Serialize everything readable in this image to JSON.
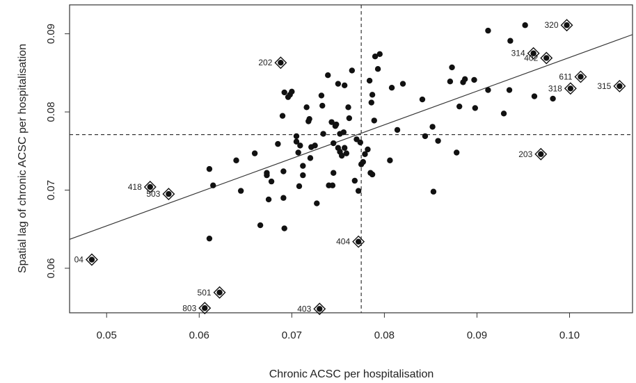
{
  "chart_data": {
    "type": "scatter",
    "xlabel": "Chronic ACSC  per hospitalisation",
    "ylabel": "Spatial lag of chronic ACSC  per hospitalisation",
    "xlim": [
      0.046,
      0.1068
    ],
    "ylim": [
      0.0543,
      0.0937
    ],
    "x_ticks": [
      0.05,
      0.06,
      0.07,
      0.08,
      0.09,
      0.1
    ],
    "x_tick_labels": [
      "0.05",
      "0.06",
      "0.07",
      "0.08",
      "0.09",
      "0.10"
    ],
    "y_ticks": [
      0.06,
      0.07,
      0.08,
      0.09
    ],
    "y_tick_labels": [
      "0.06",
      "0.07",
      "0.08",
      "0.09"
    ],
    "mean_lines": {
      "x": 0.0775,
      "y": 0.0771
    },
    "regression_line": {
      "x": [
        0.046,
        0.1068
      ],
      "y": [
        0.0637,
        0.0899
      ]
    },
    "grid": false,
    "legend": "none",
    "points": [
      [
        0.0611,
        0.0727
      ],
      [
        0.0615,
        0.0706
      ],
      [
        0.0611,
        0.0638
      ],
      [
        0.064,
        0.0738
      ],
      [
        0.0645,
        0.0699
      ],
      [
        0.066,
        0.0747
      ],
      [
        0.0666,
        0.0655
      ],
      [
        0.0673,
        0.0722
      ],
      [
        0.0673,
        0.0719
      ],
      [
        0.0675,
        0.0688
      ],
      [
        0.0678,
        0.0711
      ],
      [
        0.0685,
        0.0759
      ],
      [
        0.069,
        0.0795
      ],
      [
        0.0691,
        0.0724
      ],
      [
        0.0691,
        0.069
      ],
      [
        0.0692,
        0.0651
      ],
      [
        0.0692,
        0.0825
      ],
      [
        0.0696,
        0.0819
      ],
      [
        0.0698,
        0.0822
      ],
      [
        0.07,
        0.0826
      ],
      [
        0.0705,
        0.0769
      ],
      [
        0.0705,
        0.0762
      ],
      [
        0.0707,
        0.0748
      ],
      [
        0.0708,
        0.0705
      ],
      [
        0.0709,
        0.0757
      ],
      [
        0.0712,
        0.0731
      ],
      [
        0.0712,
        0.0719
      ],
      [
        0.0716,
        0.0806
      ],
      [
        0.0718,
        0.0788
      ],
      [
        0.0719,
        0.0791
      ],
      [
        0.072,
        0.0741
      ],
      [
        0.0721,
        0.0755
      ],
      [
        0.0725,
        0.0757
      ],
      [
        0.0727,
        0.0683
      ],
      [
        0.0732,
        0.0821
      ],
      [
        0.0733,
        0.0808
      ],
      [
        0.0734,
        0.0772
      ],
      [
        0.0739,
        0.0847
      ],
      [
        0.074,
        0.0706
      ],
      [
        0.0743,
        0.0787
      ],
      [
        0.0744,
        0.0706
      ],
      [
        0.0745,
        0.076
      ],
      [
        0.0745,
        0.0722
      ],
      [
        0.0747,
        0.0782
      ],
      [
        0.0748,
        0.0784
      ],
      [
        0.075,
        0.0754
      ],
      [
        0.075,
        0.0836
      ],
      [
        0.0752,
        0.0772
      ],
      [
        0.0752,
        0.0749
      ],
      [
        0.0754,
        0.0744
      ],
      [
        0.0756,
        0.0774
      ],
      [
        0.0757,
        0.0754
      ],
      [
        0.0757,
        0.0834
      ],
      [
        0.0759,
        0.0747
      ],
      [
        0.0761,
        0.0806
      ],
      [
        0.0762,
        0.0792
      ],
      [
        0.0765,
        0.0853
      ],
      [
        0.0768,
        0.0712
      ],
      [
        0.077,
        0.0765
      ],
      [
        0.0772,
        0.0699
      ],
      [
        0.0774,
        0.0761
      ],
      [
        0.0775,
        0.0733
      ],
      [
        0.0777,
        0.0736
      ],
      [
        0.0779,
        0.0746
      ],
      [
        0.0782,
        0.0752
      ],
      [
        0.0784,
        0.084
      ],
      [
        0.0785,
        0.0722
      ],
      [
        0.0786,
        0.0812
      ],
      [
        0.0787,
        0.0822
      ],
      [
        0.0787,
        0.072
      ],
      [
        0.0789,
        0.0789
      ],
      [
        0.079,
        0.0871
      ],
      [
        0.0793,
        0.0855
      ],
      [
        0.0795,
        0.0874
      ],
      [
        0.0806,
        0.0738
      ],
      [
        0.0808,
        0.0831
      ],
      [
        0.0814,
        0.0777
      ],
      [
        0.082,
        0.0836
      ],
      [
        0.0841,
        0.0816
      ],
      [
        0.0844,
        0.0769
      ],
      [
        0.0852,
        0.0781
      ],
      [
        0.0853,
        0.0698
      ],
      [
        0.0858,
        0.0763
      ],
      [
        0.0871,
        0.0839
      ],
      [
        0.0873,
        0.0857
      ],
      [
        0.0878,
        0.0748
      ],
      [
        0.0881,
        0.0807
      ],
      [
        0.0885,
        0.0838
      ],
      [
        0.0887,
        0.0842
      ],
      [
        0.0897,
        0.0841
      ],
      [
        0.0898,
        0.0805
      ],
      [
        0.0912,
        0.0904
      ],
      [
        0.0912,
        0.0828
      ],
      [
        0.0929,
        0.0798
      ],
      [
        0.0935,
        0.0828
      ],
      [
        0.0936,
        0.0891
      ],
      [
        0.0952,
        0.0911
      ],
      [
        0.0962,
        0.082
      ],
      [
        0.0982,
        0.0817
      ]
    ],
    "highlighted_points": [
      {
        "label": "320",
        "x": 0.0997,
        "y": 0.0911,
        "label_side": "left"
      },
      {
        "label": "314",
        "x": 0.0961,
        "y": 0.0875,
        "label_side": "left"
      },
      {
        "label": "402",
        "x": 0.0975,
        "y": 0.0869,
        "label_side": "left"
      },
      {
        "label": "611",
        "x": 0.1012,
        "y": 0.0845,
        "label_side": "left"
      },
      {
        "label": "318",
        "x": 0.1001,
        "y": 0.083,
        "label_side": "left"
      },
      {
        "label": "315",
        "x": 0.1054,
        "y": 0.0833,
        "label_side": "left"
      },
      {
        "label": "202",
        "x": 0.0688,
        "y": 0.0863,
        "label_side": "left"
      },
      {
        "label": "203",
        "x": 0.0969,
        "y": 0.0746,
        "label_side": "left"
      },
      {
        "label": "418",
        "x": 0.0547,
        "y": 0.0704,
        "label_side": "left"
      },
      {
        "label": "503",
        "x": 0.0567,
        "y": 0.0695,
        "label_side": "left"
      },
      {
        "label": "404",
        "x": 0.0772,
        "y": 0.0634,
        "label_side": "left"
      },
      {
        "label": "04",
        "x": 0.0484,
        "y": 0.0611,
        "label_side": "left"
      },
      {
        "label": "501",
        "x": 0.0622,
        "y": 0.0569,
        "label_side": "left"
      },
      {
        "label": "803",
        "x": 0.0606,
        "y": 0.0549,
        "label_side": "left"
      },
      {
        "label": "403",
        "x": 0.073,
        "y": 0.0548,
        "label_side": "left"
      }
    ]
  }
}
